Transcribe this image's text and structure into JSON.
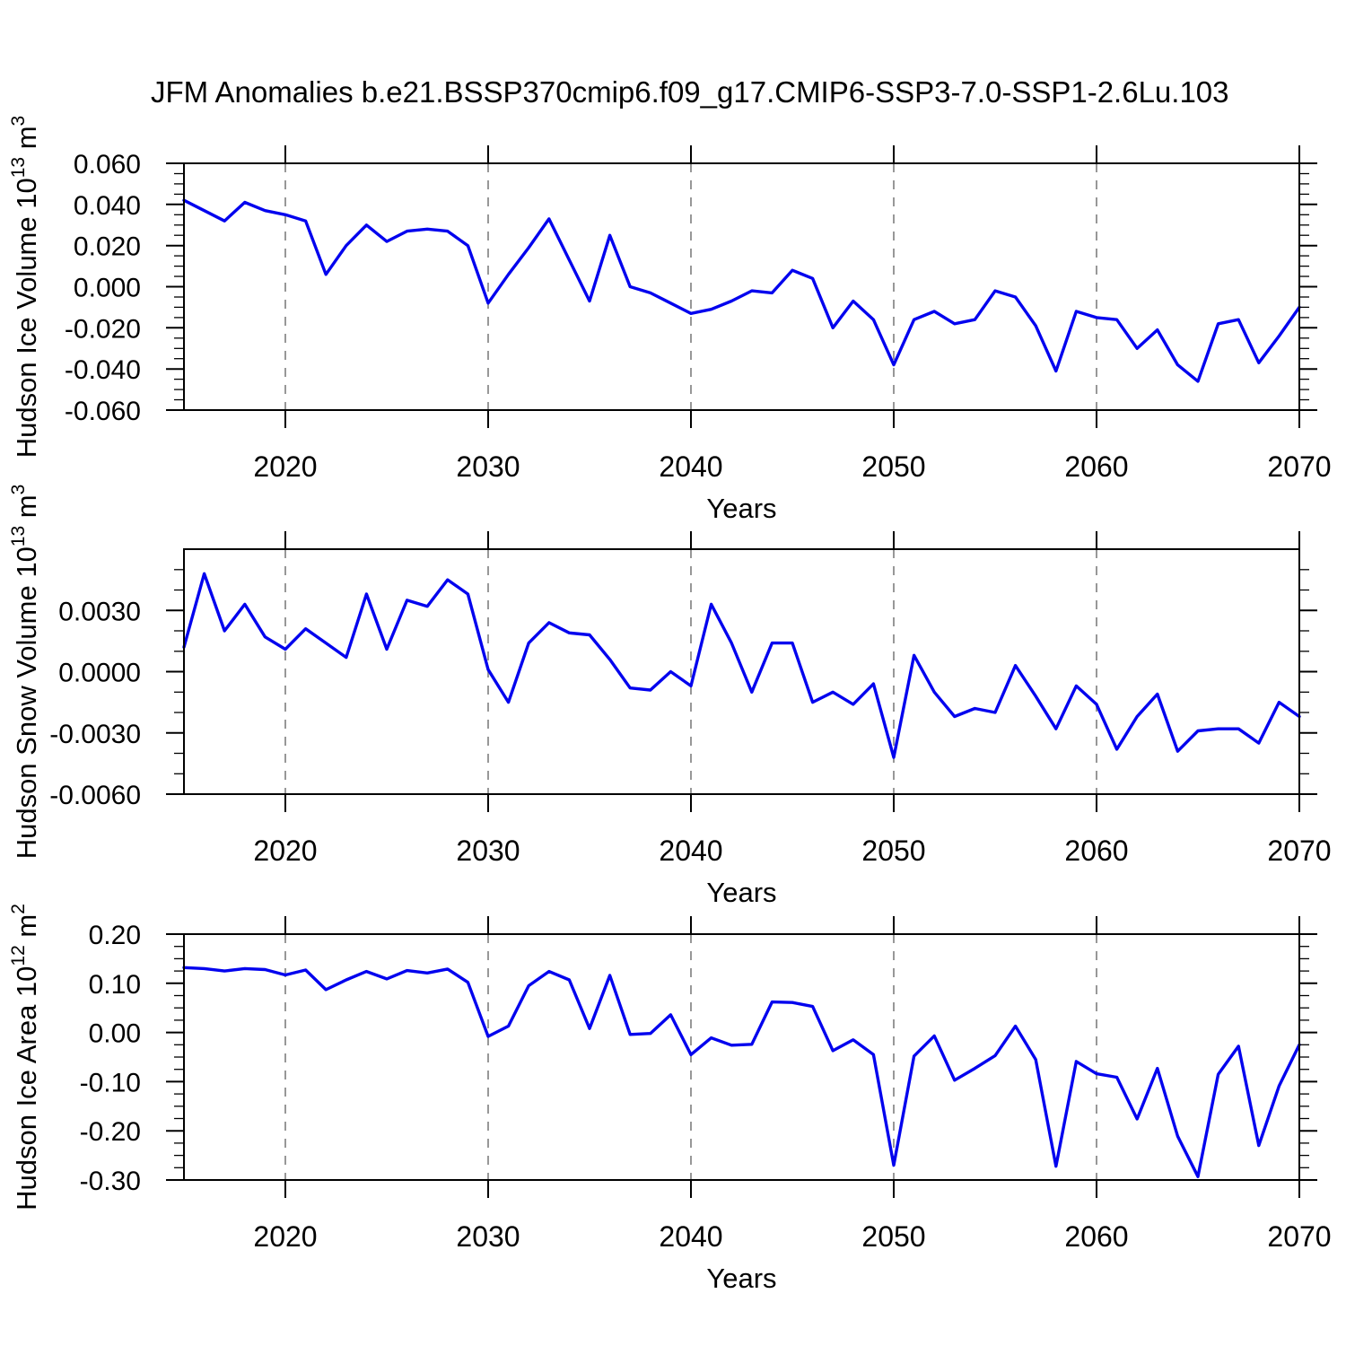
{
  "title": "JFM Anomalies b.e21.BSSP370cmip6.f09_g17.CMIP6-SSP3-7.0-SSP1-2.6Lu.103",
  "line_color": "#0202ee",
  "grid_color": "#8c8c8c",
  "axis_color": "#000000",
  "chart_data": [
    {
      "type": "line",
      "id": "hudson-ice-volume",
      "ylabel": "Hudson Ice Volume 10^13 m^3",
      "ylabel_parts": {
        "main": "Hudson Ice Volume 10",
        "exp": "13",
        "unit": " m",
        "unit_exp": "3"
      },
      "xlabel": "Years",
      "xlim": [
        2015,
        2070
      ],
      "ylim": [
        -0.06,
        0.06
      ],
      "xtick_values": [
        2020,
        2030,
        2040,
        2050,
        2060,
        2070
      ],
      "xtick_labels": [
        "2020",
        "2030",
        "2040",
        "2050",
        "2060",
        "2070"
      ],
      "xtick_minor_step": 2,
      "ytick_values": [
        0.06,
        0.04,
        0.02,
        0.0,
        -0.02,
        -0.04,
        -0.06
      ],
      "ytick_labels": [
        "0.060",
        "0.040",
        "0.020",
        "0.000",
        "-0.020",
        "-0.040",
        "-0.060"
      ],
      "ytick_minor_step": 0.005,
      "grid_x": [
        2020,
        2030,
        2040,
        2050,
        2060
      ],
      "x": [
        2015,
        2016,
        2017,
        2018,
        2019,
        2020,
        2021,
        2022,
        2023,
        2024,
        2025,
        2026,
        2027,
        2028,
        2029,
        2030,
        2031,
        2032,
        2033,
        2034,
        2035,
        2036,
        2037,
        2038,
        2039,
        2040,
        2041,
        2042,
        2043,
        2044,
        2045,
        2046,
        2047,
        2048,
        2049,
        2050,
        2051,
        2052,
        2053,
        2054,
        2055,
        2056,
        2057,
        2058,
        2059,
        2060,
        2061,
        2062,
        2063,
        2064,
        2065,
        2066,
        2067,
        2068,
        2069,
        2070
      ],
      "y": [
        0.042,
        0.037,
        0.032,
        0.041,
        0.037,
        0.035,
        0.032,
        0.006,
        0.02,
        0.03,
        0.022,
        0.027,
        0.028,
        0.027,
        0.02,
        -0.008,
        0.006,
        0.019,
        0.033,
        0.013,
        -0.007,
        0.025,
        0.0,
        -0.003,
        -0.008,
        -0.013,
        -0.011,
        -0.007,
        -0.002,
        -0.003,
        0.008,
        0.004,
        -0.02,
        -0.007,
        -0.016,
        -0.038,
        -0.016,
        -0.012,
        -0.018,
        -0.016,
        -0.002,
        -0.005,
        -0.019,
        -0.041,
        -0.012,
        -0.015,
        -0.016,
        -0.03,
        -0.021,
        -0.038,
        -0.046,
        -0.018,
        -0.016,
        -0.037,
        -0.024,
        -0.01
      ]
    },
    {
      "type": "line",
      "id": "hudson-snow-volume",
      "ylabel": "Hudson Snow Volume 10^13 m^3",
      "ylabel_parts": {
        "main": "Hudson Snow Volume 10",
        "exp": "13",
        "unit": " m",
        "unit_exp": "3"
      },
      "xlabel": "Years",
      "xlim": [
        2015,
        2070
      ],
      "ylim": [
        -0.006,
        0.006
      ],
      "xtick_values": [
        2020,
        2030,
        2040,
        2050,
        2060,
        2070
      ],
      "xtick_labels": [
        "2020",
        "2030",
        "2040",
        "2050",
        "2060",
        "2070"
      ],
      "xtick_minor_step": 2,
      "ytick_values": [
        0.003,
        0.0,
        -0.003,
        -0.006
      ],
      "ytick_labels": [
        "0.0030",
        "0.0000",
        "-0.0030",
        "-0.0060"
      ],
      "ytick_minor_step": 0.001,
      "grid_x": [
        2020,
        2030,
        2040,
        2050,
        2060
      ],
      "x": [
        2015,
        2016,
        2017,
        2018,
        2019,
        2020,
        2021,
        2022,
        2023,
        2024,
        2025,
        2026,
        2027,
        2028,
        2029,
        2030,
        2031,
        2032,
        2033,
        2034,
        2035,
        2036,
        2037,
        2038,
        2039,
        2040,
        2041,
        2042,
        2043,
        2044,
        2045,
        2046,
        2047,
        2048,
        2049,
        2050,
        2051,
        2052,
        2053,
        2054,
        2055,
        2056,
        2057,
        2058,
        2059,
        2060,
        2061,
        2062,
        2063,
        2064,
        2065,
        2066,
        2067,
        2068,
        2069,
        2070
      ],
      "y": [
        0.0012,
        0.0048,
        0.002,
        0.0033,
        0.0017,
        0.0011,
        0.0021,
        0.0014,
        0.0007,
        0.0038,
        0.0011,
        0.0035,
        0.0032,
        0.0045,
        0.0038,
        0.0001,
        -0.0015,
        0.0014,
        0.0024,
        0.0019,
        0.0018,
        0.0006,
        -0.0008,
        -0.0009,
        0.0,
        -0.0007,
        0.0033,
        0.0014,
        -0.001,
        0.0014,
        0.0014,
        -0.0015,
        -0.001,
        -0.0016,
        -0.0006,
        -0.0042,
        0.0008,
        -0.001,
        -0.0022,
        -0.0018,
        -0.002,
        0.0003,
        -0.0012,
        -0.0028,
        -0.0007,
        -0.0016,
        -0.0038,
        -0.0022,
        -0.0011,
        -0.0039,
        -0.0029,
        -0.0028,
        -0.0028,
        -0.0035,
        -0.0015,
        -0.0022
      ]
    },
    {
      "type": "line",
      "id": "hudson-ice-area",
      "ylabel": "Hudson Ice Area 10^12 m^2",
      "ylabel_parts": {
        "main": "Hudson Ice Area 10",
        "exp": "12",
        "unit": " m",
        "unit_exp": "2"
      },
      "xlabel": "Years",
      "xlim": [
        2015,
        2070
      ],
      "ylim": [
        -0.3,
        0.2
      ],
      "xtick_values": [
        2020,
        2030,
        2040,
        2050,
        2060,
        2070
      ],
      "xtick_labels": [
        "2020",
        "2030",
        "2040",
        "2050",
        "2060",
        "2070"
      ],
      "xtick_minor_step": 2,
      "ytick_values": [
        0.2,
        0.1,
        0.0,
        -0.1,
        -0.2,
        -0.3
      ],
      "ytick_labels": [
        "0.20",
        "0.10",
        "0.00",
        "-0.10",
        "-0.20",
        "-0.30"
      ],
      "ytick_minor_step": 0.025,
      "grid_x": [
        2020,
        2030,
        2040,
        2050,
        2060
      ],
      "x": [
        2015,
        2016,
        2017,
        2018,
        2019,
        2020,
        2021,
        2022,
        2023,
        2024,
        2025,
        2026,
        2027,
        2028,
        2029,
        2030,
        2031,
        2032,
        2033,
        2034,
        2035,
        2036,
        2037,
        2038,
        2039,
        2040,
        2041,
        2042,
        2043,
        2044,
        2045,
        2046,
        2047,
        2048,
        2049,
        2050,
        2051,
        2052,
        2053,
        2054,
        2055,
        2056,
        2057,
        2058,
        2059,
        2060,
        2061,
        2062,
        2063,
        2064,
        2065,
        2066,
        2067,
        2068,
        2069,
        2070
      ],
      "y": [
        0.132,
        0.13,
        0.125,
        0.13,
        0.128,
        0.117,
        0.127,
        0.087,
        0.107,
        0.124,
        0.109,
        0.126,
        0.121,
        0.129,
        0.102,
        -0.008,
        0.013,
        0.095,
        0.124,
        0.107,
        0.008,
        0.116,
        -0.004,
        -0.002,
        0.036,
        -0.045,
        -0.011,
        -0.026,
        -0.024,
        0.062,
        0.061,
        0.053,
        -0.037,
        -0.015,
        -0.045,
        -0.27,
        -0.048,
        -0.007,
        -0.097,
        -0.073,
        -0.047,
        0.013,
        -0.055,
        -0.272,
        -0.059,
        -0.084,
        -0.091,
        -0.176,
        -0.073,
        -0.211,
        -0.293,
        -0.085,
        -0.028,
        -0.23,
        -0.109,
        -0.025
      ]
    }
  ]
}
